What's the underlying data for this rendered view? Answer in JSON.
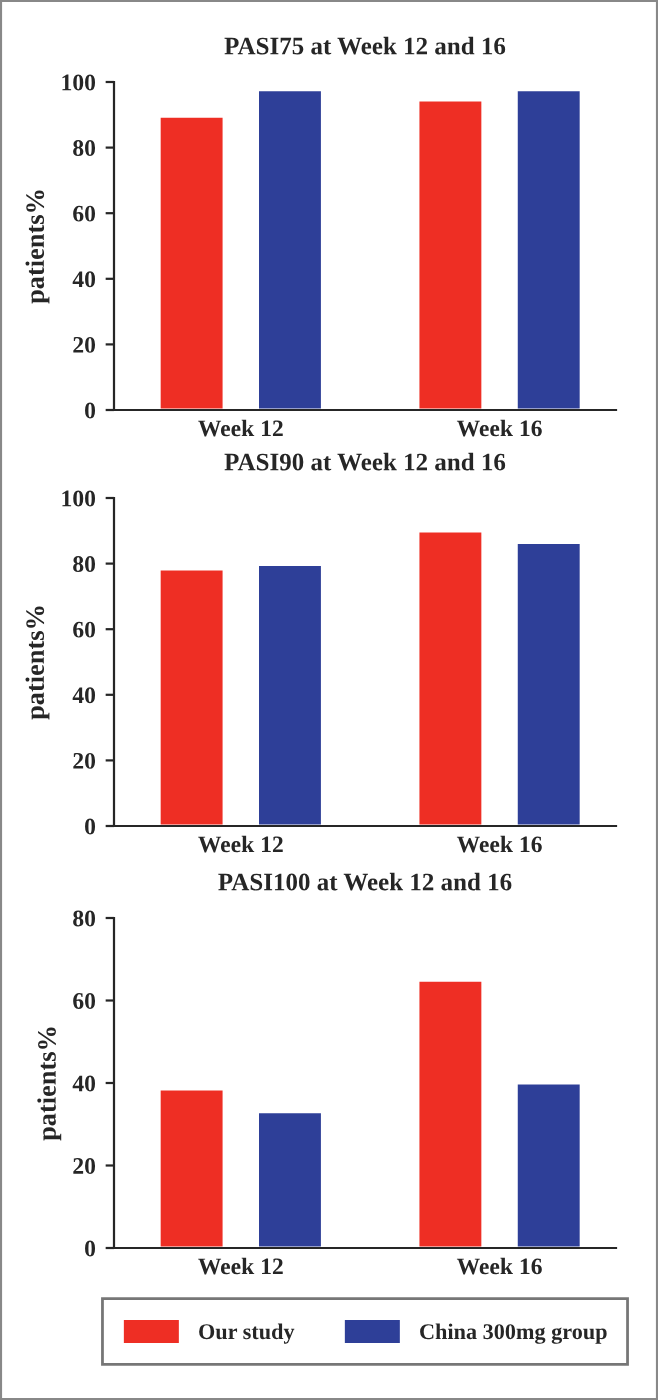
{
  "chart_data": [
    {
      "type": "bar",
      "title": "PASI75 at Week 12 and 16",
      "ylabel": "patients%",
      "categories": [
        "Week 12",
        "Week 16"
      ],
      "ylim": [
        0,
        100
      ],
      "yticks": [
        0,
        20,
        40,
        60,
        80,
        100
      ],
      "grid": false,
      "legend": false,
      "series": [
        {
          "color": "#ee2e24",
          "values": [
            89.5,
            94.5
          ]
        },
        {
          "color": "#2e3f98",
          "values": [
            97.6,
            97.6
          ]
        }
      ]
    },
    {
      "type": "bar",
      "title": "PASI90 at Week 12 and 16",
      "ylabel": "patients%",
      "categories": [
        "Week 12",
        "Week 16"
      ],
      "ylim": [
        0,
        100
      ],
      "yticks": [
        0,
        20,
        40,
        60,
        80,
        100
      ],
      "grid": false,
      "legend": false,
      "series": [
        {
          "color": "#ee2e24",
          "values": [
            78.3,
            89.9
          ]
        },
        {
          "color": "#2e3f98",
          "values": [
            79.7,
            86.4
          ]
        }
      ]
    },
    {
      "type": "bar",
      "title": "PASI100 at Week 12 and 16",
      "ylabel": "patients%",
      "categories": [
        "Week 12",
        "Week 16"
      ],
      "ylim": [
        0,
        80
      ],
      "yticks": [
        0,
        20,
        40,
        60,
        80
      ],
      "grid": false,
      "legend": "bottom",
      "series": [
        {
          "name": "Our study",
          "color": "#ee2e24",
          "values": [
            38.5,
            64.9
          ]
        },
        {
          "name": "China 300mg group",
          "color": "#2e3f98",
          "values": [
            33.0,
            40.0
          ]
        }
      ]
    }
  ]
}
